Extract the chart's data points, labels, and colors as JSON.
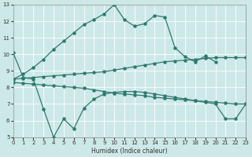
{
  "xlabel": "Humidex (Indice chaleur)",
  "bg_color": "#cde8e8",
  "line_color": "#2d7a6e",
  "grid_color": "#ffffff",
  "xmin": 0,
  "xmax": 23,
  "ymin": 5,
  "ymax": 13,
  "lines": [
    {
      "x": [
        0,
        1,
        2,
        3,
        4,
        5,
        6,
        7,
        8,
        9,
        10,
        11,
        12,
        13,
        14,
        15,
        16,
        17,
        18,
        19,
        20
      ],
      "y": [
        8.5,
        8.8,
        9.2,
        9.7,
        10.3,
        10.8,
        11.3,
        11.8,
        12.1,
        12.45,
        13.0,
        12.1,
        11.7,
        11.85,
        12.35,
        12.25,
        10.4,
        9.85,
        9.55,
        9.9,
        9.55
      ]
    },
    {
      "x": [
        0,
        1,
        2,
        3,
        4,
        5,
        6,
        7,
        8,
        9,
        10,
        11,
        12,
        13,
        14,
        15,
        16,
        17,
        18,
        19,
        20,
        21,
        22,
        23
      ],
      "y": [
        8.5,
        8.55,
        8.6,
        8.65,
        8.7,
        8.75,
        8.8,
        8.85,
        8.9,
        8.95,
        9.05,
        9.15,
        9.25,
        9.35,
        9.45,
        9.55,
        9.6,
        9.65,
        9.7,
        9.75,
        9.8,
        9.8,
        9.8,
        9.8
      ]
    },
    {
      "x": [
        0,
        1,
        2,
        3,
        4,
        5,
        6,
        7,
        8,
        9,
        10,
        11,
        12,
        13,
        14,
        15,
        16,
        17,
        18,
        19,
        20,
        21,
        22,
        23
      ],
      "y": [
        8.3,
        8.25,
        8.2,
        8.15,
        8.1,
        8.05,
        8.0,
        7.95,
        7.85,
        7.75,
        7.65,
        7.6,
        7.55,
        7.5,
        7.4,
        7.35,
        7.3,
        7.25,
        7.2,
        7.15,
        7.1,
        7.05,
        7.0,
        7.0
      ]
    },
    {
      "x": [
        0,
        1,
        2,
        3,
        4,
        5,
        6,
        7,
        8,
        9,
        10,
        11,
        12,
        13,
        14,
        15,
        16,
        17,
        18,
        19,
        20,
        21,
        22,
        23
      ],
      "y": [
        10.1,
        8.6,
        8.5,
        6.7,
        5.0,
        6.1,
        5.5,
        6.75,
        7.3,
        7.6,
        7.7,
        7.75,
        7.75,
        7.7,
        7.6,
        7.5,
        7.4,
        7.3,
        7.2,
        7.1,
        7.0,
        6.1,
        6.1,
        7.0
      ]
    }
  ]
}
